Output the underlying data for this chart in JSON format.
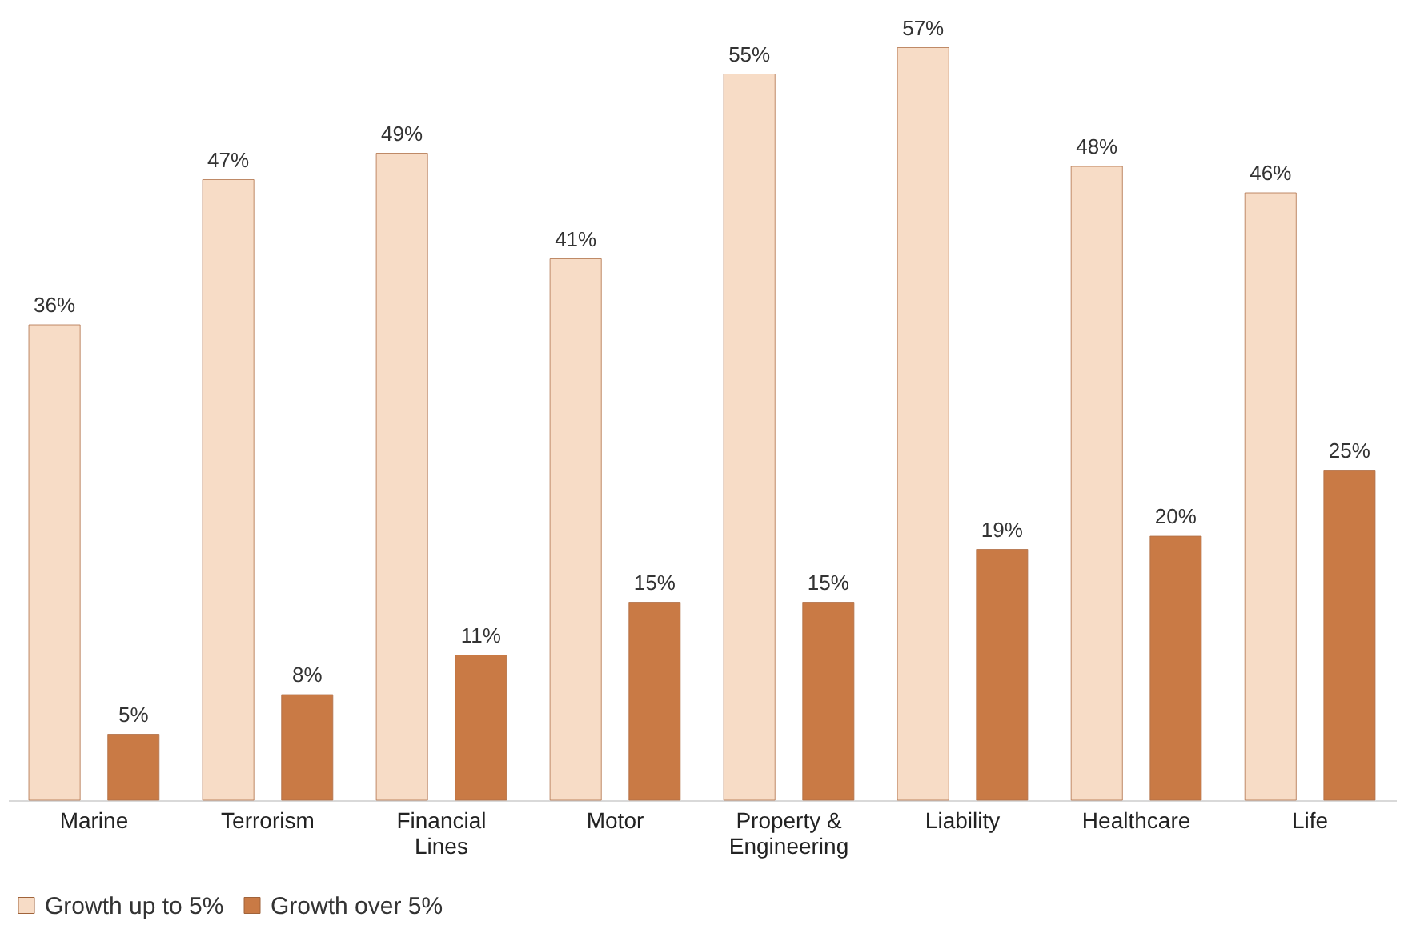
{
  "chart_data": {
    "type": "bar",
    "categories": [
      "Marine",
      "Terrorism",
      "Financial Lines",
      "Motor",
      "Property & Engineering",
      "Liability",
      "Healthcare",
      "Life"
    ],
    "series": [
      {
        "name": "Growth up to 5%",
        "color": "#f7dcc6",
        "values": [
          36,
          47,
          49,
          41,
          55,
          57,
          48,
          46
        ],
        "value_labels": [
          "36%",
          "47%",
          "49%",
          "41%",
          "55%",
          "57%",
          "48%",
          "46%"
        ]
      },
      {
        "name": "Growth over 5%",
        "color": "#c97a45",
        "values": [
          5,
          8,
          11,
          15,
          15,
          19,
          20,
          25
        ],
        "value_labels": [
          "5%",
          "8%",
          "11%",
          "15%",
          "15%",
          "19%",
          "20%",
          "25%"
        ]
      }
    ],
    "tick_labels": "x",
    "grid": false,
    "legend": "bottom"
  }
}
